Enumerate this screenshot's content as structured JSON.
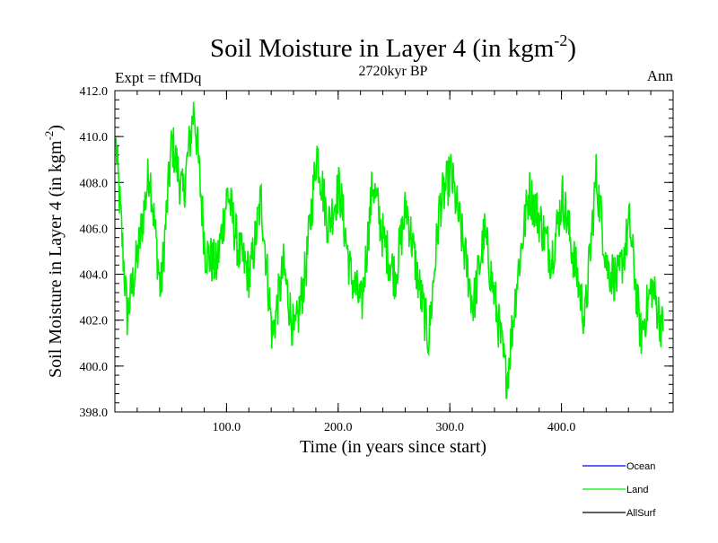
{
  "chart_data": {
    "type": "line",
    "title_main": "Soil Moisture in Layer 4 (in kgm",
    "title_sup": "-2",
    "title_close": ")",
    "subtitle_center": "2720kyr BP",
    "subtitle_left": "Expt = tfMDq",
    "subtitle_right": "Ann",
    "xlabel": "Time (in years since start)",
    "ylabel_main": "Soil Moisture in Layer 4 (in kgm",
    "ylabel_sup": "-2",
    "ylabel_close": ")",
    "xlim": [
      0,
      500
    ],
    "ylim": [
      398,
      412
    ],
    "x_ticks": [
      100,
      200,
      300,
      400
    ],
    "x_tick_labels": [
      "100.0",
      "200.0",
      "300.0",
      "400.0"
    ],
    "y_ticks": [
      398,
      400,
      402,
      404,
      406,
      408,
      410,
      412
    ],
    "y_tick_labels": [
      "398.0",
      "400.0",
      "402.0",
      "404.0",
      "406.0",
      "408.0",
      "410.0",
      "412.0"
    ],
    "legend": [
      {
        "name": "Ocean",
        "color": "#0000ff"
      },
      {
        "name": "Land",
        "color": "#00ee00"
      },
      {
        "name": "AllSurf",
        "color": "#000000"
      }
    ],
    "series": [
      {
        "name": "Land",
        "color": "#00ee00",
        "x_start": 1,
        "x_step": 10,
        "values": [
          409.6,
          402.2,
          405.0,
          408.6,
          403.2,
          409.8,
          407.4,
          411.3,
          405.0,
          404.3,
          407.6,
          405.0,
          403.9,
          407.3,
          401.3,
          404.3,
          401.2,
          404.2,
          409.4,
          406.1,
          407.8,
          404.0,
          402.6,
          408.0,
          405.4,
          403.9,
          407.0,
          403.9,
          401.2,
          407.0,
          408.4,
          405.6,
          402.6,
          405.8,
          402.7,
          399.3,
          404.1,
          407.6,
          406.3,
          404.7,
          407.4,
          404.7,
          402.0,
          408.3,
          404.3,
          403.7,
          406.2,
          401.3,
          403.5,
          401.5
        ]
      }
    ]
  }
}
